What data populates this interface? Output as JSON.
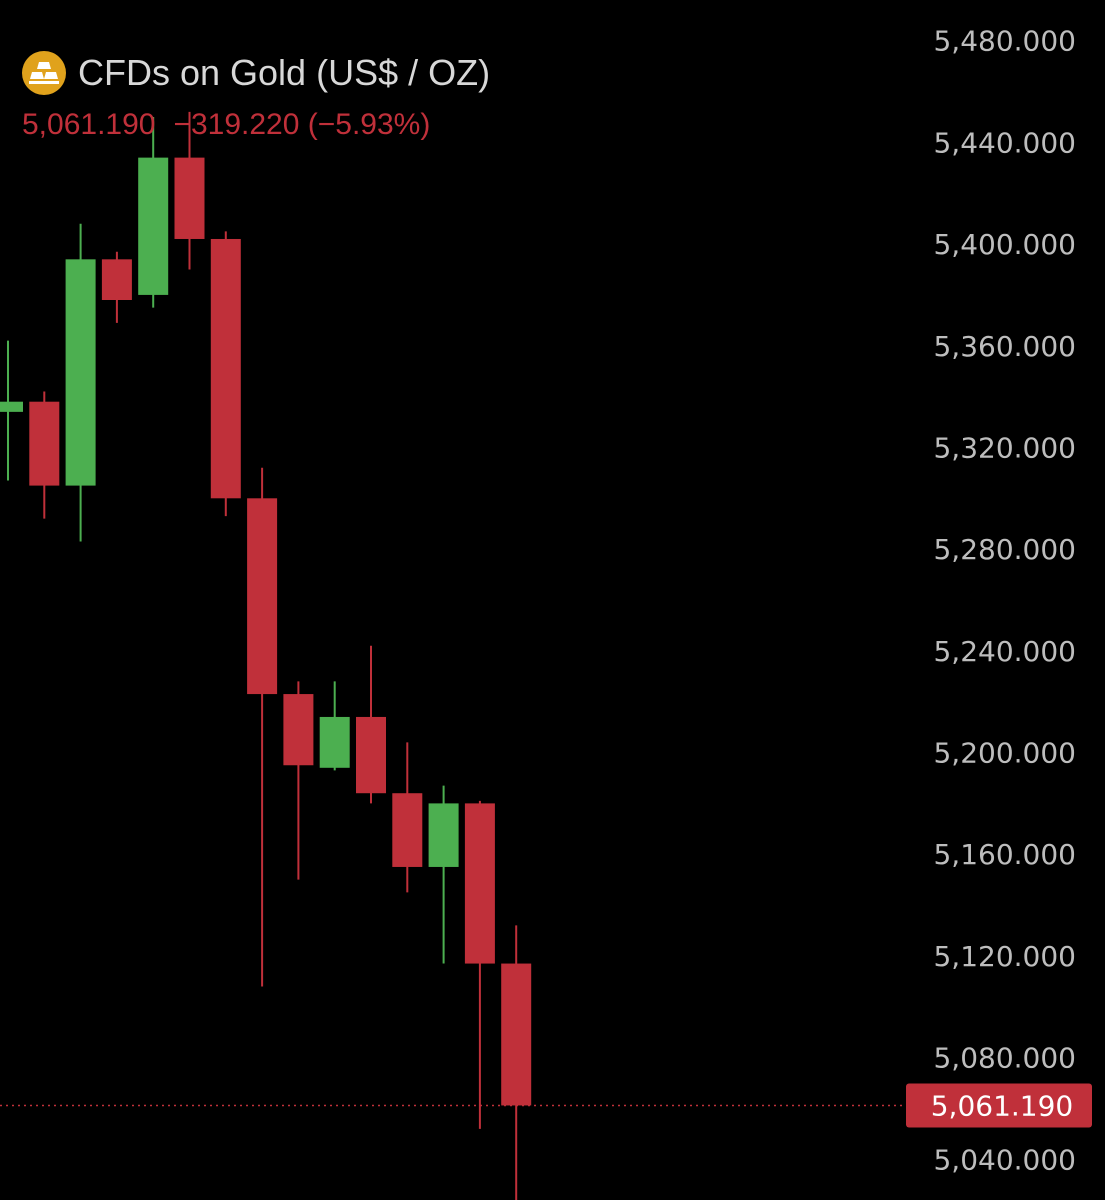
{
  "header": {
    "logo_icon": "gold-bars-icon",
    "logo_color": "#e0a21c",
    "title": "CFDs on Gold (US$ / OZ)",
    "last_price": "5,061.190",
    "change": "−319.220 (−5.93%)"
  },
  "colors": {
    "up": "#4caf50",
    "down": "#c0303a",
    "text": "#bdbdbd",
    "background": "#000000"
  },
  "chart_data": {
    "type": "candlestick",
    "title": "CFDs on Gold (US$ / OZ)",
    "y_axis_position": "right",
    "ylim": [
      5024,
      5496
    ],
    "y_ticks": [
      5480,
      5440,
      5400,
      5360,
      5320,
      5280,
      5240,
      5200,
      5160,
      5120,
      5080,
      5040
    ],
    "y_tick_labels": [
      "5,480.000",
      "5,440.000",
      "5,400.000",
      "5,360.000",
      "5,320.000",
      "5,280.000",
      "5,240.000",
      "5,200.000",
      "5,160.000",
      "5,120.000",
      "5,080.000",
      "5,040.000"
    ],
    "last_price_value": 5061.19,
    "last_price_label": "5,061.190",
    "grid": false,
    "candles": [
      {
        "open": 5334,
        "high": 5362,
        "low": 5307,
        "close": 5338
      },
      {
        "open": 5338,
        "high": 5342,
        "low": 5292,
        "close": 5305
      },
      {
        "open": 5305,
        "high": 5408,
        "low": 5283,
        "close": 5394
      },
      {
        "open": 5394,
        "high": 5397,
        "low": 5369,
        "close": 5378
      },
      {
        "open": 5380,
        "high": 5450,
        "low": 5375,
        "close": 5434
      },
      {
        "open": 5434,
        "high": 5452,
        "low": 5390,
        "close": 5402
      },
      {
        "open": 5402,
        "high": 5405,
        "low": 5293,
        "close": 5300
      },
      {
        "open": 5300,
        "high": 5312,
        "low": 5108,
        "close": 5223
      },
      {
        "open": 5223,
        "high": 5228,
        "low": 5150,
        "close": 5195
      },
      {
        "open": 5194,
        "high": 5228,
        "low": 5193,
        "close": 5214
      },
      {
        "open": 5214,
        "high": 5242,
        "low": 5180,
        "close": 5184
      },
      {
        "open": 5184,
        "high": 5204,
        "low": 5145,
        "close": 5155
      },
      {
        "open": 5155,
        "high": 5187,
        "low": 5117,
        "close": 5180
      },
      {
        "open": 5180,
        "high": 5181,
        "low": 5052,
        "close": 5117
      },
      {
        "open": 5117,
        "high": 5132,
        "low": 5023,
        "close": 5061.19
      }
    ]
  }
}
